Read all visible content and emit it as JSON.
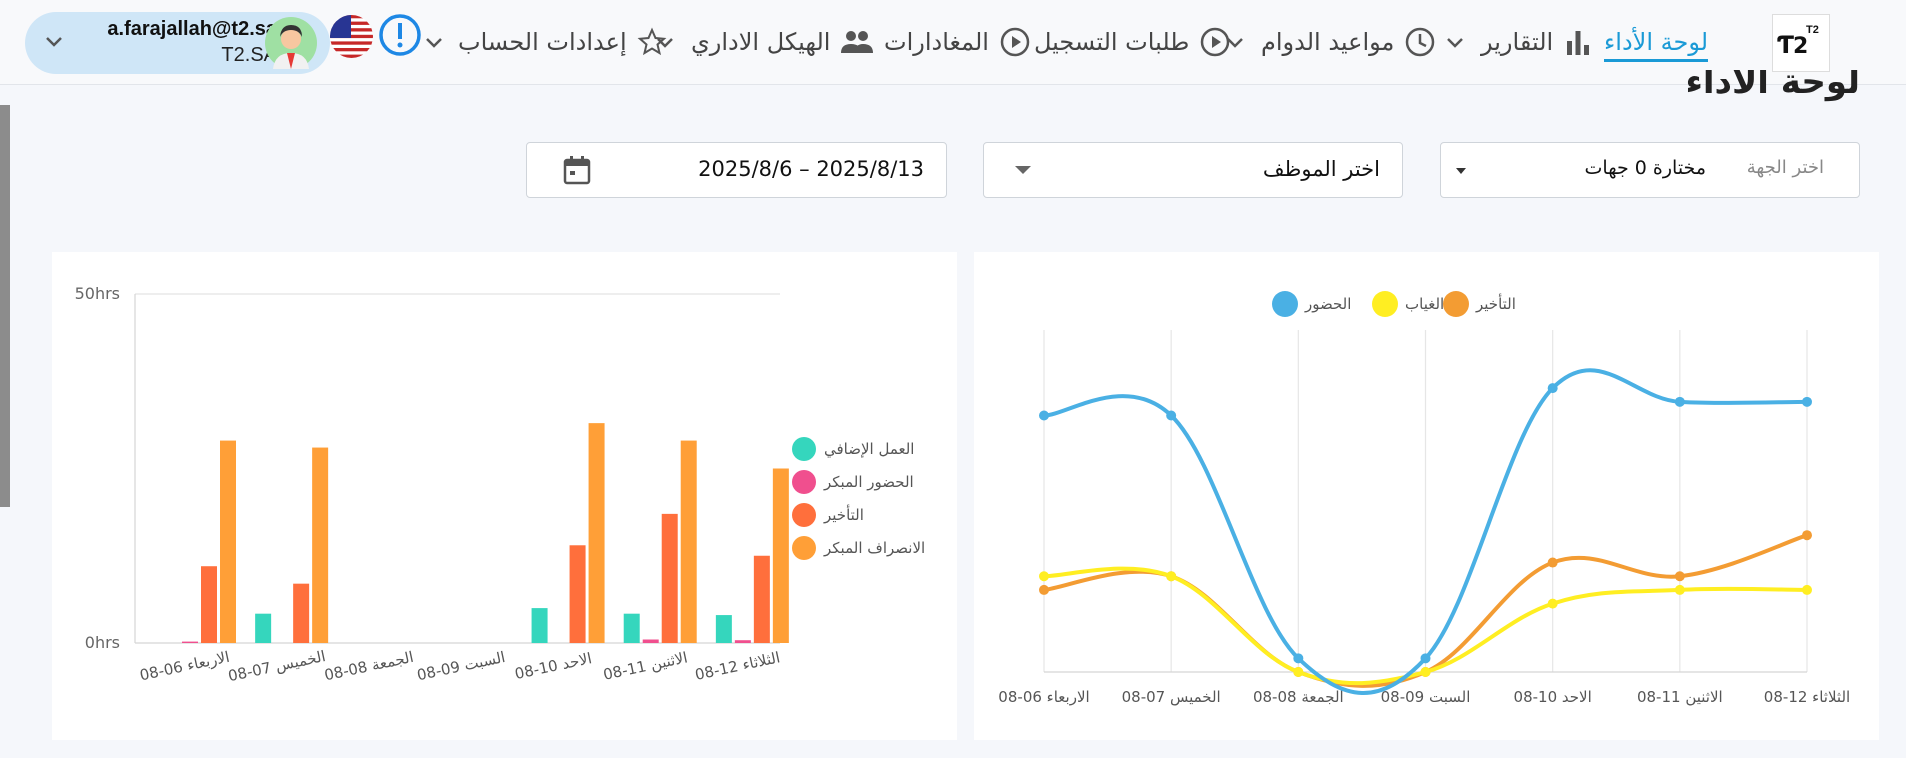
{
  "header": {
    "user_email": "a.farajallah@t2.sa",
    "user_org": "T2.SA",
    "logo_text": "T2",
    "nav": [
      {
        "label": "لوحة الأداء",
        "icon": "dashboard",
        "active": true
      },
      {
        "label": "التقارير",
        "icon": "bar-chart-icon",
        "dropdown": true
      },
      {
        "label": "مواعيد الدوام",
        "icon": "clock-icon",
        "dropdown": true
      },
      {
        "label": "طلبات التسجيل",
        "icon": "play-circle-icon"
      },
      {
        "label": "المغادارات",
        "icon": "play-circle-icon"
      },
      {
        "label": "الهيكل الاداري",
        "icon": "people-icon"
      },
      {
        "label": "إعدادات الحساب",
        "icon": "star-icon",
        "dropdown": true
      }
    ]
  },
  "page": {
    "title": "لوحة الأداء"
  },
  "filters": {
    "date_range": "2025/8/6 – 2025/8/13",
    "employee_placeholder": "اختر الموظف",
    "department_label": "اختر الجهة",
    "department_value": "مختارة 0 جهات"
  },
  "colors": {
    "accent": "#1a9ad6",
    "attendance": "#4ab0e4",
    "absence": "#ffee22",
    "late": "#f39c33",
    "overtime": "#35d6bd",
    "early_attendance": "#f04f8e",
    "bar_late": "#ff6f3c",
    "early_leave": "#ff9f37"
  },
  "chart_data": [
    {
      "type": "bar",
      "ylabel_ticks": [
        "0hrs",
        "50hrs"
      ],
      "ylim": [
        0,
        50
      ],
      "categories": [
        "الاربعاء 06-08",
        "الخميس 07-08",
        "الجمعة 08-08",
        "السبت 09-08",
        "الاحد 10-08",
        "الاثنين 11-08",
        "الثلاثاء 12-08"
      ],
      "legend_position": "right",
      "series": [
        {
          "name": "العمل الإضافي",
          "color": "#35d6bd",
          "values": [
            0,
            4.2,
            0,
            0,
            5,
            4.2,
            4
          ]
        },
        {
          "name": "الحضور المبكر",
          "color": "#f04f8e",
          "values": [
            0.2,
            0,
            0,
            0,
            0,
            0.5,
            0.4
          ]
        },
        {
          "name": "التأخير",
          "color": "#ff6f3c",
          "values": [
            11,
            8.5,
            0,
            0,
            14,
            18.5,
            12.5
          ]
        },
        {
          "name": "الانصراف المبكر",
          "color": "#ff9f37",
          "values": [
            29,
            28,
            0,
            0,
            31.5,
            29,
            25
          ]
        }
      ]
    },
    {
      "type": "line",
      "ylim": [
        0,
        100
      ],
      "categories": [
        "الاربعاء 06-08",
        "الخميس 07-08",
        "الجمعة 08-08",
        "السبت 09-08",
        "الاحد 10-08",
        "الاثنين 11-08",
        "الثلاثاء 12-08"
      ],
      "legend_position": "top",
      "series": [
        {
          "name": "الحضور",
          "color": "#4ab0e4",
          "values": [
            75,
            75,
            4,
            4,
            83,
            79,
            79
          ]
        },
        {
          "name": "الغياب",
          "color": "#ffee22",
          "values": [
            28,
            28,
            0,
            0,
            20,
            24,
            24
          ]
        },
        {
          "name": "التأخير",
          "color": "#f39c33",
          "values": [
            24,
            28,
            0,
            0,
            32,
            28,
            40
          ]
        }
      ]
    }
  ]
}
